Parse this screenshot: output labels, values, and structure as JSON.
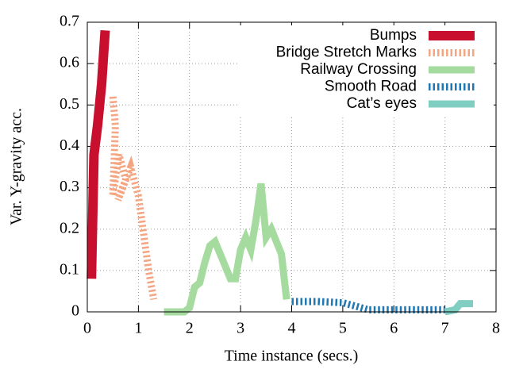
{
  "chart_data": {
    "type": "line",
    "xlabel": "Time instance (secs.)",
    "ylabel": "Var. Y-gravity acc.",
    "xlim": [
      0,
      8
    ],
    "xticks": [
      0,
      1,
      2,
      3,
      4,
      5,
      6,
      7,
      8
    ],
    "ylim": [
      0,
      0.7
    ],
    "yticks": [
      0,
      0.1,
      0.2,
      0.3,
      0.4,
      0.5,
      0.6,
      0.7
    ],
    "grid": true,
    "legend": "top-right",
    "series": [
      {
        "name": "Bumps",
        "color": "#c8102e",
        "dashed": false,
        "x": [
          0.08,
          0.13,
          0.2,
          0.28,
          0.35
        ],
        "values": [
          0.08,
          0.38,
          0.45,
          0.55,
          0.68
        ]
      },
      {
        "name": "Bridge Stretch Marks",
        "color": "#f4a582",
        "dashed": true,
        "x": [
          0.5,
          0.55,
          0.5,
          0.62,
          0.75,
          0.6,
          0.85,
          1.0,
          1.2,
          1.3
        ],
        "values": [
          0.52,
          0.45,
          0.28,
          0.38,
          0.32,
          0.27,
          0.35,
          0.28,
          0.1,
          0.03
        ]
      },
      {
        "name": "Railway Crossing",
        "color": "#a6dba0",
        "dashed": false,
        "x": [
          1.5,
          1.9,
          2.0,
          2.1,
          2.2,
          2.3,
          2.4,
          2.5,
          2.6,
          2.7,
          2.8,
          2.9,
          3.0,
          3.1,
          3.2,
          3.3,
          3.4,
          3.5,
          3.6,
          3.7,
          3.8,
          3.9
        ],
        "values": [
          0,
          0,
          0.01,
          0.06,
          0.07,
          0.12,
          0.16,
          0.17,
          0.14,
          0.11,
          0.08,
          0.08,
          0.15,
          0.18,
          0.15,
          0.22,
          0.31,
          0.18,
          0.2,
          0.17,
          0.14,
          0.03
        ]
      },
      {
        "name": "Smooth Road",
        "color": "#1f78b4",
        "dashed": true,
        "x": [
          4.0,
          4.5,
          5.0,
          5.3,
          5.5,
          6.0,
          6.5,
          7.0
        ],
        "values": [
          0.025,
          0.025,
          0.022,
          0.012,
          0.005,
          0.005,
          0.005,
          0.005
        ]
      },
      {
        "name": "Cat’s eyes",
        "color": "#80cdc1",
        "dashed": false,
        "x": [
          7.0,
          7.2,
          7.3,
          7.5,
          7.55
        ],
        "values": [
          0,
          0.005,
          0.02,
          0.02,
          0.02
        ]
      }
    ]
  }
}
